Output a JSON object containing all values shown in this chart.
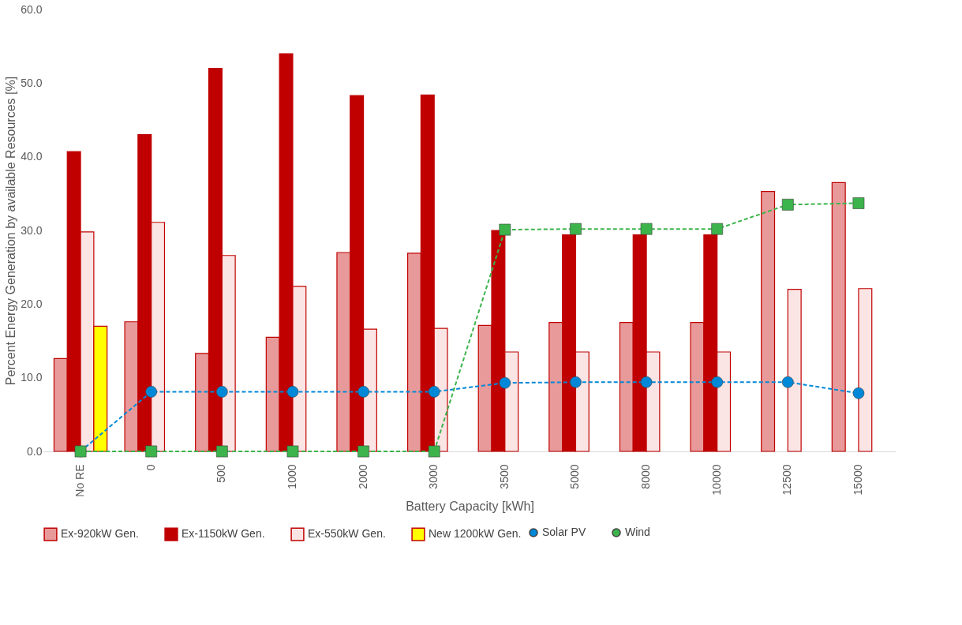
{
  "chart_data": {
    "type": "bar",
    "xlabel": "Battery Capacity [kWh]",
    "ylabel": "Percent Energy Generation by available Resources [%]",
    "categories": [
      "No RE",
      "0",
      "500",
      "1000",
      "2000",
      "3000",
      "3500",
      "5000",
      "8000",
      "10000",
      "12500",
      "15000"
    ],
    "series": [
      {
        "name": "Ex-920kW Gen.",
        "color": "#e89a9a",
        "values": [
          12.6,
          17.6,
          13.3,
          15.5,
          27.0,
          26.9,
          17.1,
          17.5,
          17.5,
          17.5,
          35.3,
          36.5
        ]
      },
      {
        "name": "Ex-1150kW Gen.",
        "color": "#c00000",
        "values": [
          40.7,
          43.0,
          52.0,
          54.0,
          48.3,
          48.4,
          30.0,
          29.4,
          29.4,
          29.4,
          null,
          null
        ]
      },
      {
        "name": "Ex-550kW Gen.",
        "color": "#fbe4e4",
        "values": [
          29.8,
          31.1,
          26.6,
          22.4,
          16.6,
          16.7,
          13.5,
          13.5,
          13.5,
          13.5,
          22.0,
          22.1
        ]
      },
      {
        "name": "New 1200kW Gen.",
        "color": "#ffff00",
        "values": [
          17.0,
          null,
          null,
          null,
          null,
          null,
          null,
          null,
          null,
          null,
          null,
          null
        ]
      },
      {
        "name": "Solar PV",
        "type": "line",
        "color": "#0088d8",
        "marker": "circle",
        "line_style": "dashed",
        "values": [
          0.0,
          8.1,
          8.1,
          8.1,
          8.1,
          8.1,
          9.3,
          9.4,
          9.4,
          9.4,
          9.4,
          7.9
        ]
      },
      {
        "name": "Wind",
        "type": "line",
        "color": "#3cb44b",
        "marker": "square",
        "line_style": "dashed",
        "values": [
          0.0,
          0.0,
          0.0,
          0.0,
          0.0,
          0.0,
          30.1,
          30.2,
          30.2,
          30.2,
          33.5,
          33.7
        ]
      }
    ],
    "ylim": [
      0,
      60
    ],
    "yticks": [
      {
        "value": 0,
        "label": "0.0"
      },
      {
        "value": 10,
        "label": "10.0"
      },
      {
        "value": 20,
        "label": "20.0"
      },
      {
        "value": 30,
        "label": "30.0"
      },
      {
        "value": 40,
        "label": "40.0"
      },
      {
        "value": 50,
        "label": "50.0"
      },
      {
        "value": 60,
        "label": "60.0"
      }
    ],
    "grid": false,
    "legend": "bottom"
  }
}
